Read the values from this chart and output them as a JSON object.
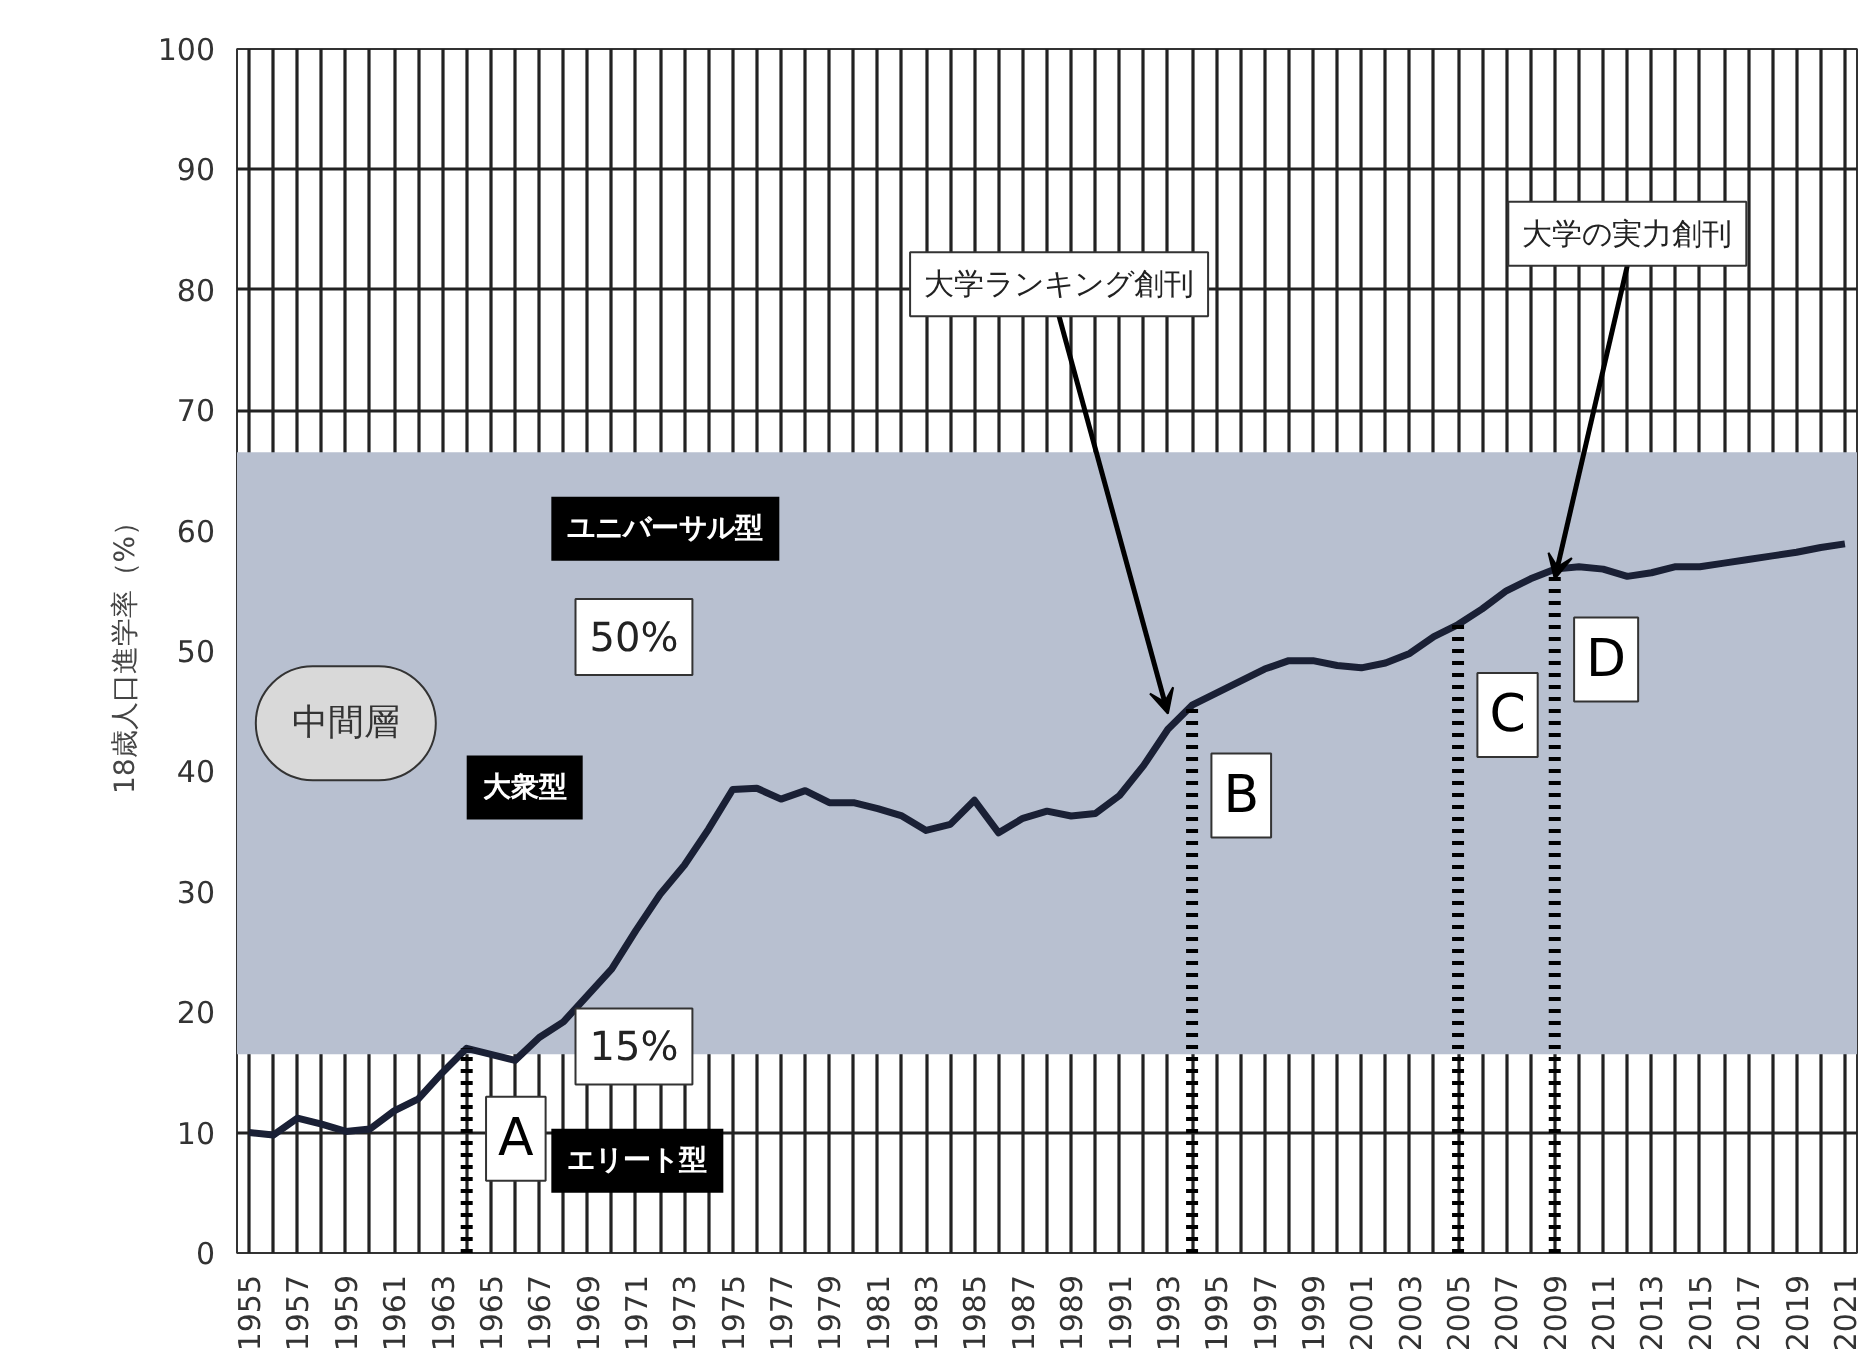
{
  "chart_data": {
    "type": "line",
    "ylabel": "18歳人口進学率（%）",
    "x": [
      1955,
      1956,
      1957,
      1958,
      1959,
      1960,
      1961,
      1962,
      1963,
      1964,
      1965,
      1966,
      1967,
      1968,
      1969,
      1970,
      1971,
      1972,
      1973,
      1974,
      1975,
      1976,
      1977,
      1978,
      1979,
      1980,
      1981,
      1982,
      1983,
      1984,
      1985,
      1986,
      1987,
      1988,
      1989,
      1990,
      1991,
      1992,
      1993,
      1994,
      1995,
      1996,
      1997,
      1998,
      1999,
      2000,
      2001,
      2002,
      2003,
      2004,
      2005,
      2006,
      2007,
      2008,
      2009,
      2010,
      2011,
      2012,
      2013,
      2014,
      2015,
      2016,
      2017,
      2018,
      2019,
      2020,
      2021
    ],
    "series": [
      {
        "color": "#1a2035",
        "values": [
          10.0,
          9.8,
          11.2,
          10.7,
          10.1,
          10.3,
          11.8,
          12.8,
          15.0,
          17.0,
          16.5,
          16.0,
          17.9,
          19.2,
          21.4,
          23.6,
          26.8,
          29.8,
          32.2,
          35.2,
          38.5,
          38.6,
          37.7,
          38.4,
          37.4,
          37.4,
          36.9,
          36.3,
          35.1,
          35.6,
          37.6,
          34.9,
          36.1,
          36.7,
          36.3,
          36.5,
          38.0,
          40.5,
          43.5,
          45.5,
          46.5,
          47.5,
          48.5,
          49.2,
          49.2,
          48.8,
          48.6,
          49.0,
          49.8,
          51.2,
          52.2,
          53.5,
          55.0,
          56.0,
          56.8,
          57.0,
          56.8,
          56.2,
          56.5,
          57.0,
          57.0,
          57.3,
          57.6,
          57.9,
          58.2,
          58.6,
          58.9
        ]
      }
    ],
    "xlim": [
      1954.5,
      2021.5
    ],
    "ylim": [
      0,
      100
    ],
    "xticks": [
      1955,
      {
        "value": 1956,
        "label": null
      },
      1957,
      {
        "value": 1958,
        "label": null
      },
      1959,
      {
        "value": 1960,
        "label": null
      },
      1961,
      {
        "value": 1962,
        "label": null
      },
      1963,
      {
        "value": 1964,
        "label": null
      },
      1965,
      {
        "value": 1966,
        "label": null
      },
      1967,
      {
        "value": 1968,
        "label": null
      },
      1969,
      {
        "value": 1970,
        "label": null
      },
      1971,
      {
        "value": 1972,
        "label": null
      },
      1973,
      {
        "value": 1974,
        "label": null
      },
      1975,
      {
        "value": 1976,
        "label": null
      },
      1977,
      {
        "value": 1978,
        "label": null
      },
      1979,
      {
        "value": 1980,
        "label": null
      },
      1981,
      {
        "value": 1982,
        "label": null
      },
      1983,
      {
        "value": 1984,
        "label": null
      },
      1985,
      {
        "value": 1986,
        "label": null
      },
      1987,
      {
        "value": 1988,
        "label": null
      },
      1989,
      {
        "value": 1990,
        "label": null
      },
      1991,
      {
        "value": 1992,
        "label": null
      },
      1993,
      {
        "value": 1994,
        "label": null
      },
      1995,
      {
        "value": 1996,
        "label": null
      },
      1997,
      {
        "value": 1998,
        "label": null
      },
      1999,
      {
        "value": 2000,
        "label": null
      },
      2001,
      {
        "value": 2002,
        "label": null
      },
      2003,
      {
        "value": 2004,
        "label": null
      },
      2005,
      {
        "value": 2006,
        "label": null
      },
      2007,
      {
        "value": 2008,
        "label": null
      },
      2009,
      {
        "value": 2010,
        "label": null
      },
      2011,
      {
        "value": 2012,
        "label": null
      },
      2013,
      {
        "value": 2014,
        "label": null
      },
      2015,
      {
        "value": 2016,
        "label": null
      },
      2017,
      {
        "value": 2018,
        "label": null
      },
      2019,
      {
        "value": 2020,
        "label": null
      },
      2021
    ],
    "yticks": [
      0,
      10,
      20,
      30,
      40,
      50,
      60,
      70,
      80,
      90,
      100
    ],
    "grid": true,
    "line_style": "solid",
    "marker": "none",
    "bands": [
      {
        "axis": "y",
        "from": 16.5,
        "to": 66.5,
        "color": "#b8c0d0"
      }
    ],
    "ref_lines": [
      {
        "axis": "x",
        "value": 1964,
        "label": "A",
        "line_style": "dotted"
      },
      {
        "axis": "x",
        "value": 1994,
        "label": "B",
        "line_style": "dotted"
      },
      {
        "axis": "x",
        "value": 2005,
        "label": "C",
        "line_style": "dotted"
      },
      {
        "axis": "x",
        "value": 2009,
        "label": "D",
        "line_style": "dotted"
      }
    ],
    "annotations": [
      "ユニバーサル型",
      "50%",
      "中間層",
      "大衆型",
      "15%",
      "エリート型",
      {
        "text": "大学ランキング創刊",
        "x": 1993,
        "y": 44.8
      },
      {
        "text": "大学の実力創刊",
        "x": 2009,
        "y": 56
      }
    ]
  }
}
